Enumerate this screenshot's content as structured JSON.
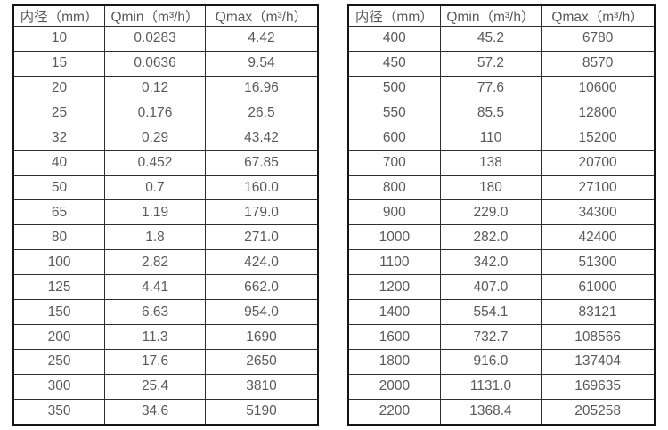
{
  "colors": {
    "background": "#ffffff",
    "border_outer": "#141414",
    "border_inner": "#2e2e2e",
    "text": "#595959"
  },
  "chart_data": [
    {
      "type": "table",
      "name": "flow-spec-small-diameters",
      "headers": [
        "内径（mm）",
        "Qmin（m³/h）",
        "Qmax（m³/h）"
      ],
      "rows": [
        [
          "10",
          "0.0283",
          "4.42"
        ],
        [
          "15",
          "0.0636",
          "9.54"
        ],
        [
          "20",
          "0.12",
          "16.96"
        ],
        [
          "25",
          "0.176",
          "26.5"
        ],
        [
          "32",
          "0.29",
          "43.42"
        ],
        [
          "40",
          "0.452",
          "67.85"
        ],
        [
          "50",
          "0.7",
          "160.0"
        ],
        [
          "65",
          "1.19",
          "179.0"
        ],
        [
          "80",
          "1.8",
          "271.0"
        ],
        [
          "100",
          "2.82",
          "424.0"
        ],
        [
          "125",
          "4.41",
          "662.0"
        ],
        [
          "150",
          "6.63",
          "954.0"
        ],
        [
          "200",
          "11.3",
          "1690"
        ],
        [
          "250",
          "17.6",
          "2650"
        ],
        [
          "300",
          "25.4",
          "3810"
        ],
        [
          "350",
          "34.6",
          "5190"
        ]
      ]
    },
    {
      "type": "table",
      "name": "flow-spec-large-diameters",
      "headers": [
        "内径（mm）",
        "Qmin（m³/h）",
        "Qmax（m³/h）"
      ],
      "rows": [
        [
          "400",
          "45.2",
          "6780"
        ],
        [
          "450",
          "57.2",
          "8570"
        ],
        [
          "500",
          "77.6",
          "10600"
        ],
        [
          "550",
          "85.5",
          "12800"
        ],
        [
          "600",
          "110",
          "15200"
        ],
        [
          "700",
          "138",
          "20700"
        ],
        [
          "800",
          "180",
          "27100"
        ],
        [
          "900",
          "229.0",
          "34300"
        ],
        [
          "1000",
          "282.0",
          "42400"
        ],
        [
          "1100",
          "342.0",
          "51300"
        ],
        [
          "1200",
          "407.0",
          "61000"
        ],
        [
          "1400",
          "554.1",
          "83121"
        ],
        [
          "1600",
          "732.7",
          "108566"
        ],
        [
          "1800",
          "916.0",
          "137404"
        ],
        [
          "2000",
          "1131.0",
          "169635"
        ],
        [
          "2200",
          "1368.4",
          "205258"
        ]
      ]
    }
  ]
}
